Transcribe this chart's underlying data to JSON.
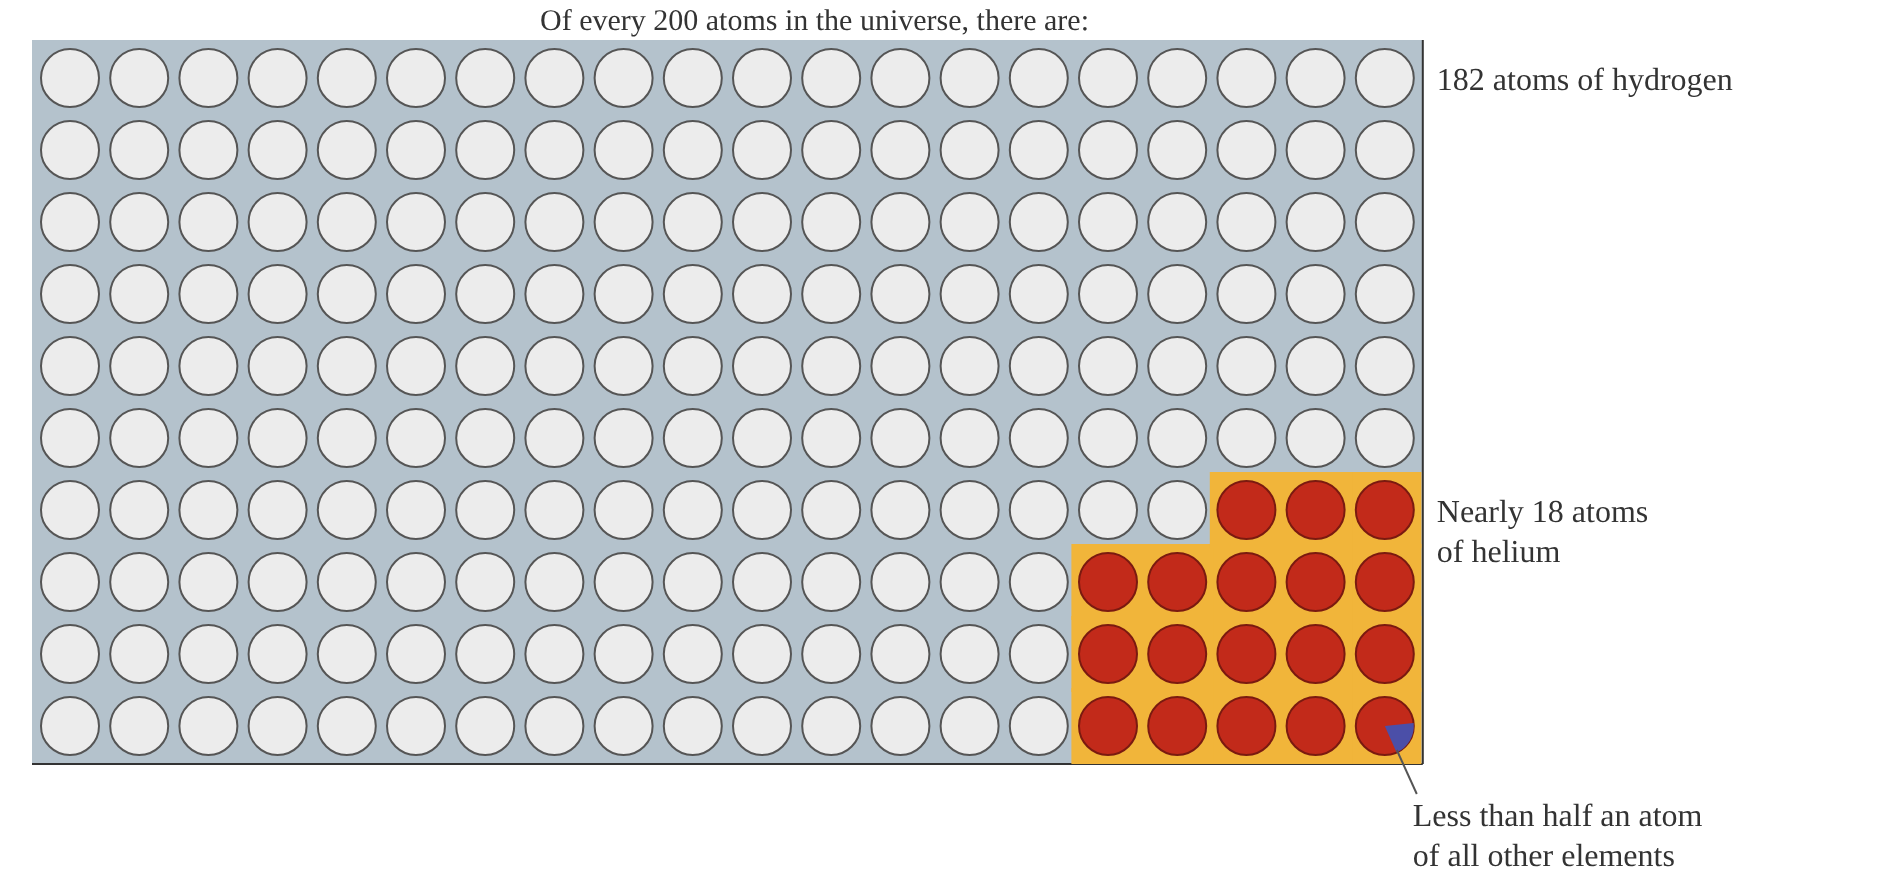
{
  "chart_data": {
    "type": "other",
    "title": "Of every 200 atoms in the universe, there are:",
    "categories": [
      "atoms of hydrogen",
      "atoms of helium",
      "an atom of all other elements"
    ],
    "values": [
      182,
      18,
      null
    ],
    "value_labels": [
      "182",
      "Nearly 18",
      "Less than half"
    ],
    "colors": [
      "#ececec",
      "#c22a1a",
      "#4b4fa8"
    ]
  }
}
